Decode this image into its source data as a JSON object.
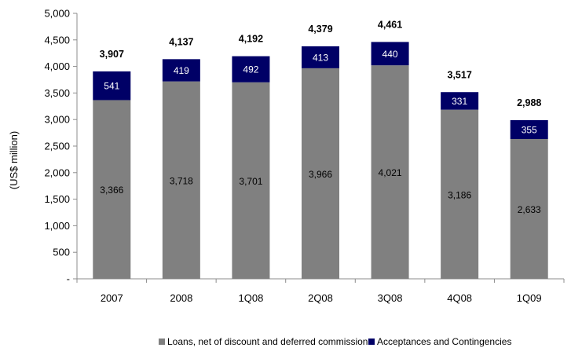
{
  "chart_data": {
    "type": "bar",
    "stacked": true,
    "categories": [
      "2007",
      "2008",
      "1Q08",
      "2Q08",
      "3Q08",
      "4Q08",
      "1Q09"
    ],
    "series": [
      {
        "name": "Loans, net of discount and deferred commission",
        "values": [
          3366,
          3718,
          3701,
          3966,
          4021,
          3186,
          2633
        ],
        "color": "#808080"
      },
      {
        "name": "Acceptances and Contingencies",
        "values": [
          541,
          419,
          492,
          413,
          440,
          331,
          355
        ],
        "color": "#000066"
      }
    ],
    "totals": [
      3907,
      4137,
      4192,
      4379,
      4461,
      3517,
      2988
    ],
    "value_labels": {
      "bottom": [
        "3,366",
        "3,718",
        "3,701",
        "3,966",
        "4,021",
        "3,186",
        "2,633"
      ],
      "top": [
        "541",
        "419",
        "492",
        "413",
        "440",
        "331",
        "355"
      ],
      "totals": [
        "3,907",
        "4,137",
        "4,192",
        "4,379",
        "4,461",
        "3,517",
        "2,988"
      ]
    },
    "title": "",
    "xlabel": "",
    "ylabel": "(US$ million)",
    "ylim": [
      0,
      5000
    ],
    "yticks": [
      0,
      500,
      1000,
      1500,
      2000,
      2500,
      3000,
      3500,
      4000,
      4500,
      5000
    ],
    "ytick_labels": [
      "-",
      "500",
      "1,000",
      "1,500",
      "2,000",
      "2,500",
      "3,000",
      "3,500",
      "4,000",
      "4,500",
      "5,000"
    ],
    "grid": false,
    "legend_position": "bottom"
  }
}
